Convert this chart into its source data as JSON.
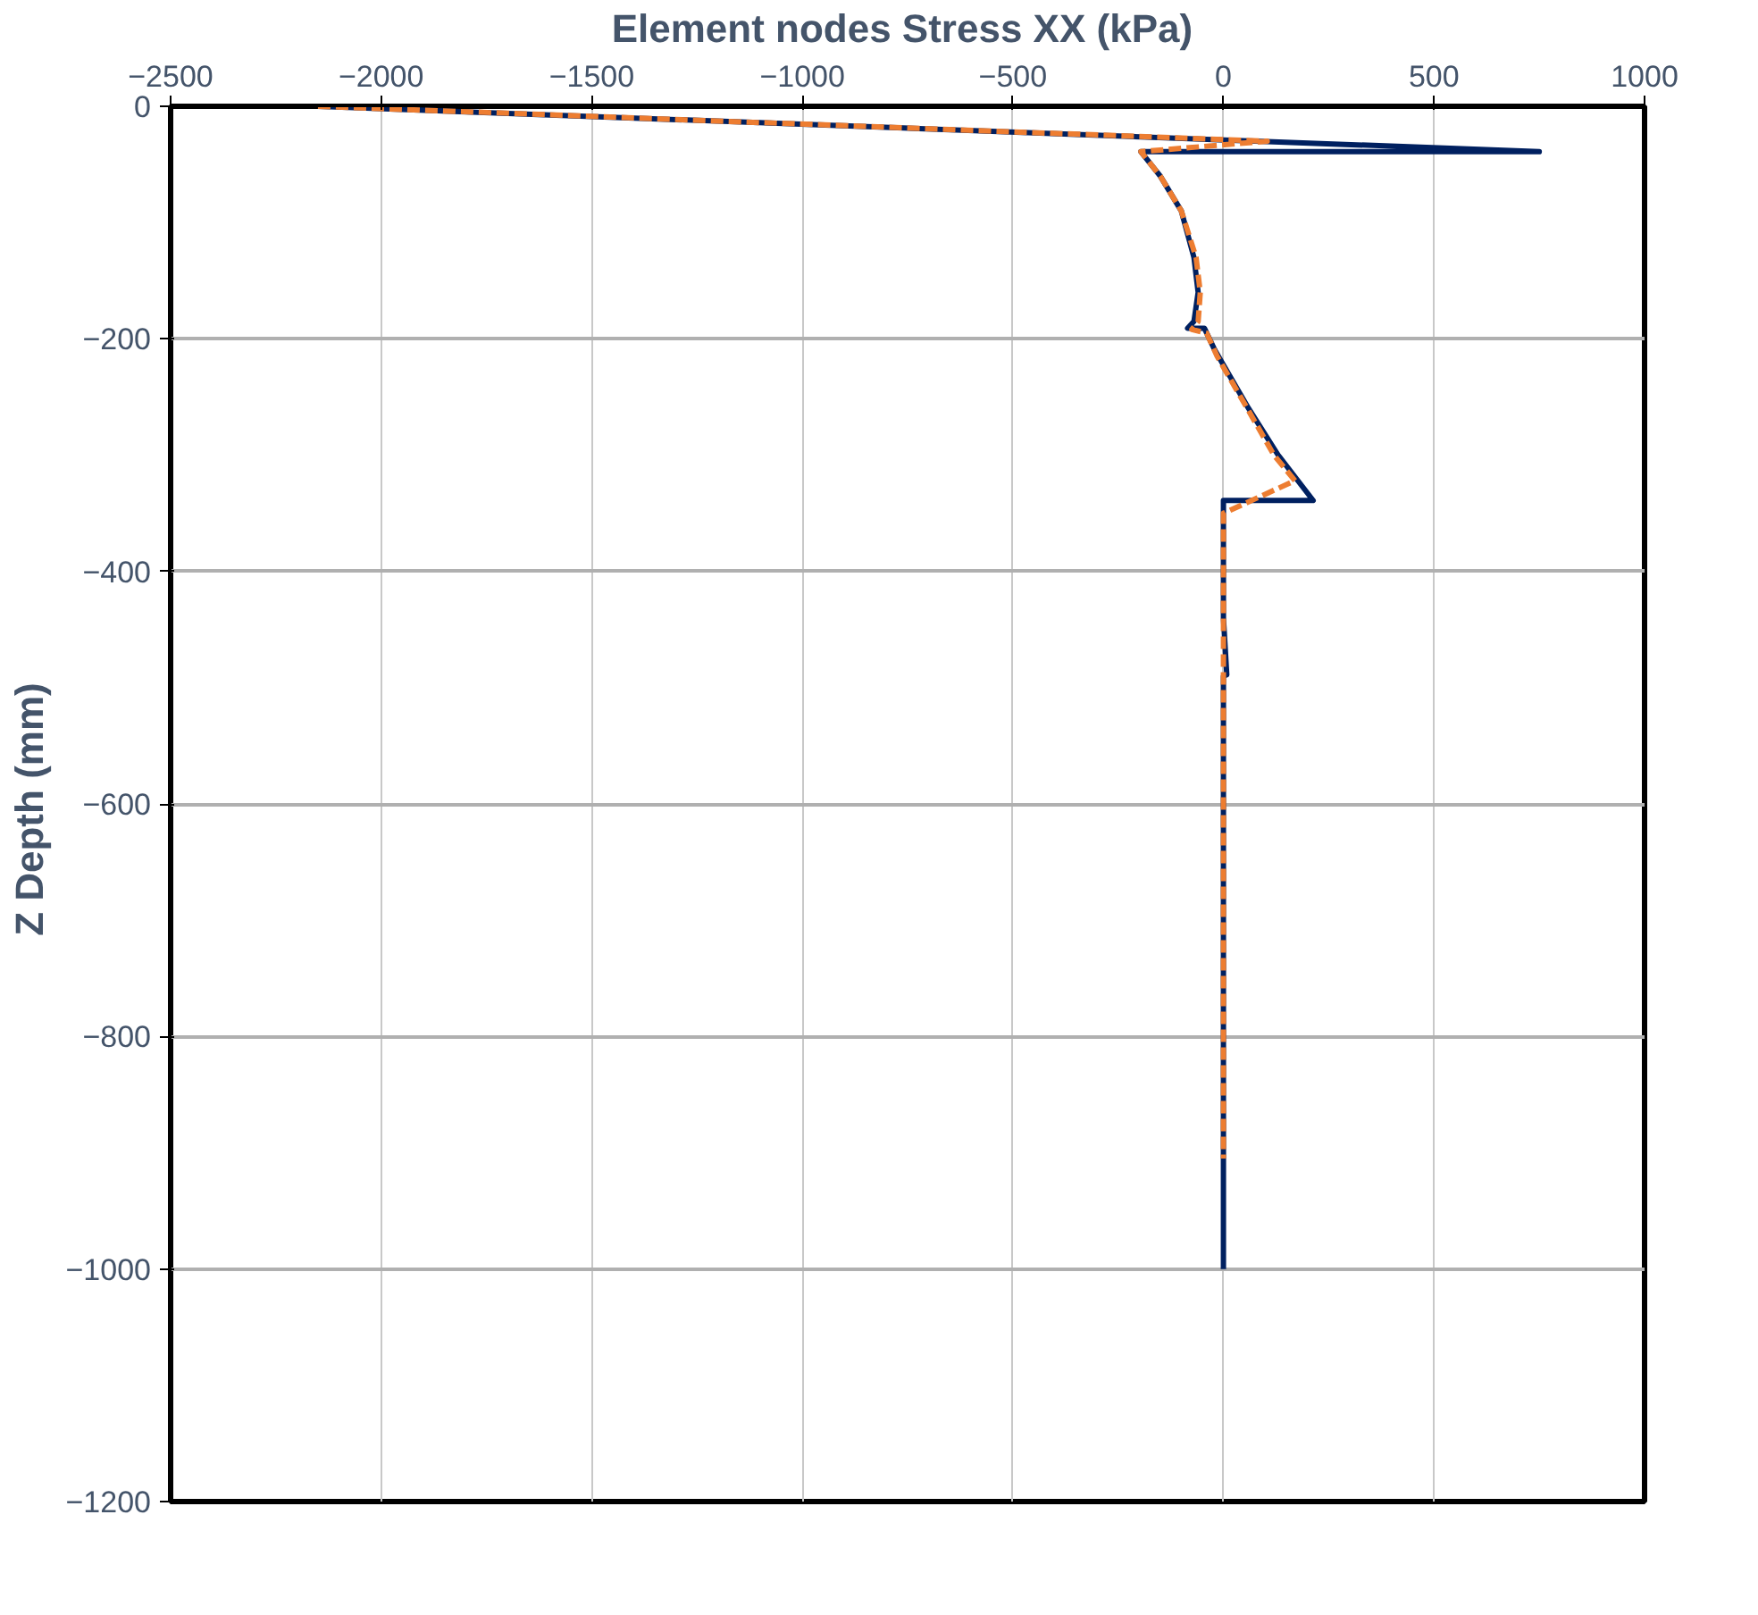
{
  "chart_data": {
    "type": "line",
    "xlabel": "Element nodes Stress XX  (kPa)",
    "ylabel": "Z Depth  (mm)",
    "xlim": [
      -2500,
      1000
    ],
    "xticks": [
      -2500,
      -2000,
      -1500,
      -1000,
      -500,
      0,
      500,
      1000
    ],
    "ylim": [
      -1200,
      0
    ],
    "yticks": [
      -1200,
      -1000,
      -800,
      -600,
      -400,
      -200,
      0
    ],
    "grid": true,
    "series": [
      {
        "color": "#002060",
        "line_style": "solid",
        "x": [
          -2150,
          750,
          -196,
          -150,
          -100,
          -70,
          -60,
          -70,
          -85,
          -45,
          -20,
          60,
          130,
          213,
          0,
          0,
          8,
          0,
          0
        ],
        "values": [
          0,
          -39,
          -39,
          -60,
          -90,
          -130,
          -160,
          -185,
          -191,
          -191,
          -210,
          -260,
          -300,
          -339,
          -339,
          -440,
          -489,
          -490,
          -1000
        ]
      },
      {
        "color": "#ed7d31",
        "line_style": "dashed",
        "x": [
          -2150,
          104,
          -196,
          -150,
          -100,
          -65,
          -55,
          -60,
          -75,
          -40,
          -15,
          60,
          120,
          170,
          0,
          0
        ],
        "values": [
          0,
          -30,
          -39,
          -60,
          -90,
          -130,
          -160,
          -185,
          -192,
          -195,
          -215,
          -262,
          -300,
          -322,
          -350,
          -905
        ]
      }
    ]
  }
}
